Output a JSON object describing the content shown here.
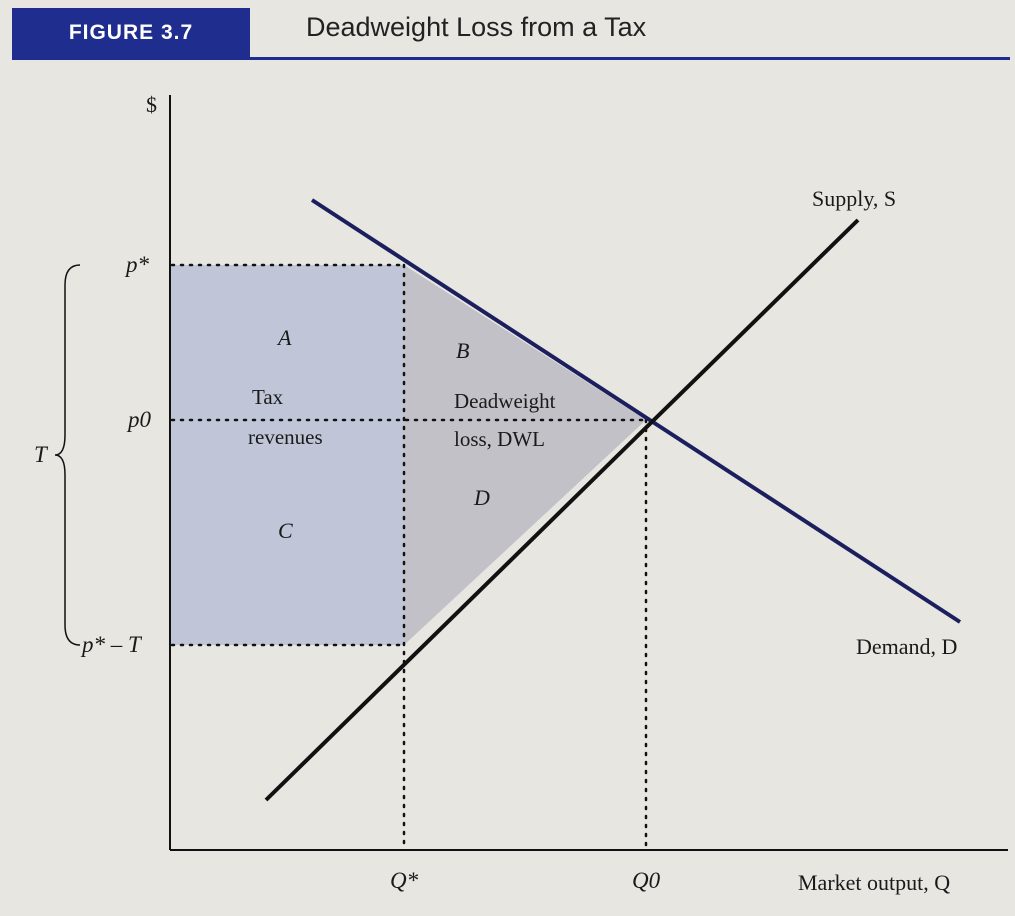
{
  "figure": {
    "label": "FIGURE 3.7",
    "title": "Deadweight Loss from a Tax"
  },
  "axes": {
    "y_label": "$",
    "x_label": "Market output, Q"
  },
  "price_labels": {
    "p_star": "p*",
    "p0": "p0",
    "p_star_minus_T": "p* – T",
    "tax_brace": "T"
  },
  "quantity_labels": {
    "q_star": "Q*",
    "q0": "Q0"
  },
  "curves": {
    "supply": "Supply, S",
    "demand": "Demand, D"
  },
  "regions": {
    "A": "A",
    "B": "B",
    "C": "C",
    "D": "D",
    "tax_revenue_line1": "Tax",
    "tax_revenue_line2": "revenues",
    "dwl_line1": "Deadweight",
    "dwl_line2": "loss, DWL"
  },
  "colors": {
    "accent": "#1f2d8e",
    "demand_line": "#1c1f5e",
    "tax_revenue_fill": "#b9bfd6",
    "dwl_fill": "#bcbcc4"
  }
}
